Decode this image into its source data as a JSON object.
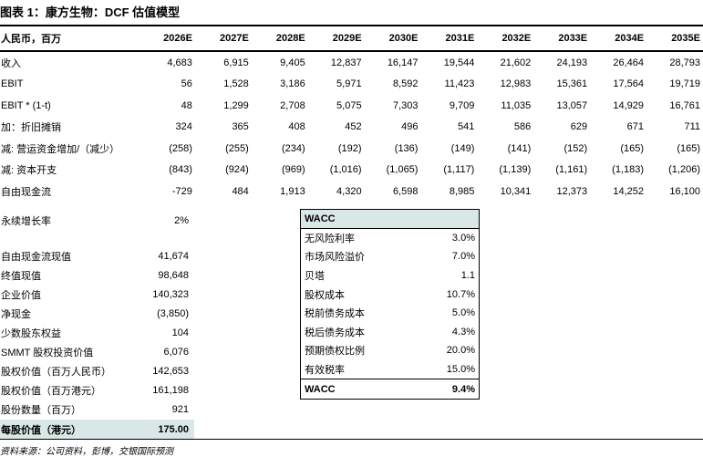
{
  "title": "图表 1：康方生物：DCF 估值模型",
  "table": {
    "unit_label": "人民币，百万",
    "years": [
      "2026E",
      "2027E",
      "2028E",
      "2029E",
      "2030E",
      "2031E",
      "2032E",
      "2033E",
      "2034E",
      "2035E"
    ],
    "rows": [
      {
        "label": "收入",
        "values": [
          "4,683",
          "6,915",
          "9,405",
          "12,837",
          "16,147",
          "19,544",
          "21,602",
          "24,193",
          "26,464",
          "28,793"
        ]
      },
      {
        "label": "EBIT",
        "values": [
          "56",
          "1,528",
          "3,186",
          "5,971",
          "8,592",
          "11,423",
          "12,983",
          "15,361",
          "17,564",
          "19,719"
        ]
      },
      {
        "label": "EBIT * (1-t)",
        "values": [
          "48",
          "1,299",
          "2,708",
          "5,075",
          "7,303",
          "9,709",
          "11,035",
          "13,057",
          "14,929",
          "16,761"
        ]
      },
      {
        "label": "加：折旧摊销",
        "values": [
          "324",
          "365",
          "408",
          "452",
          "496",
          "541",
          "586",
          "629",
          "671",
          "711"
        ]
      },
      {
        "label": "减: 营运资金增加/（减少）",
        "values": [
          "(258)",
          "(255)",
          "(234)",
          "(192)",
          "(136)",
          "(149)",
          "(141)",
          "(152)",
          "(165)",
          "(165)"
        ]
      },
      {
        "label": "减: 资本开支",
        "values": [
          "(843)",
          "(924)",
          "(969)",
          "(1,016)",
          "(1,065)",
          "(1,117)",
          "(1,139)",
          "(1,161)",
          "(1,183)",
          "(1,206)"
        ]
      },
      {
        "label": "自由现金流",
        "values": [
          "-729",
          "484",
          "1,913",
          "4,320",
          "6,598",
          "8,985",
          "10,341",
          "12,373",
          "14,252",
          "16,100"
        ]
      }
    ]
  },
  "growth": {
    "label": "永续增长率",
    "value": "2%"
  },
  "valuation_rows": [
    {
      "label": "自由现金流现值",
      "value": "41,674"
    },
    {
      "label": "终值现值",
      "value": "98,648"
    },
    {
      "label": "企业价值",
      "value": "140,323"
    },
    {
      "label": "净现金",
      "value": "(3,850)"
    },
    {
      "label": "少数股东权益",
      "value": "104"
    },
    {
      "label": "SMMT 股权投资价值",
      "value": "6,076"
    },
    {
      "label": "股权价值（百万人民币）",
      "value": "142,653"
    },
    {
      "label": "股权价值（百万港元）",
      "value": "161,198"
    },
    {
      "label": "股份数量（百万）",
      "value": "921"
    }
  ],
  "per_share": {
    "label": "每股价值（港元）",
    "value": "175.00"
  },
  "wacc_box": {
    "header": "WACC",
    "rows": [
      {
        "label": "无风险利率",
        "value": "3.0%"
      },
      {
        "label": "市场风险溢价",
        "value": "7.0%"
      },
      {
        "label": "贝塔",
        "value": "1.1"
      },
      {
        "label": "股权成本",
        "value": "10.7%"
      },
      {
        "label": "税前债务成本",
        "value": "5.0%"
      },
      {
        "label": "税后债务成本",
        "value": "4.3%"
      },
      {
        "label": "预期债权比例",
        "value": "20.0%"
      },
      {
        "label": "有效税率",
        "value": "15.0%"
      }
    ],
    "total": {
      "label": "WACC",
      "value": "9.4%"
    }
  },
  "footer": {
    "source": "资料来源：公司资料，彭博，交银国际预测"
  },
  "colors": {
    "highlight": "#d9e8e6",
    "rule": "#000000"
  }
}
